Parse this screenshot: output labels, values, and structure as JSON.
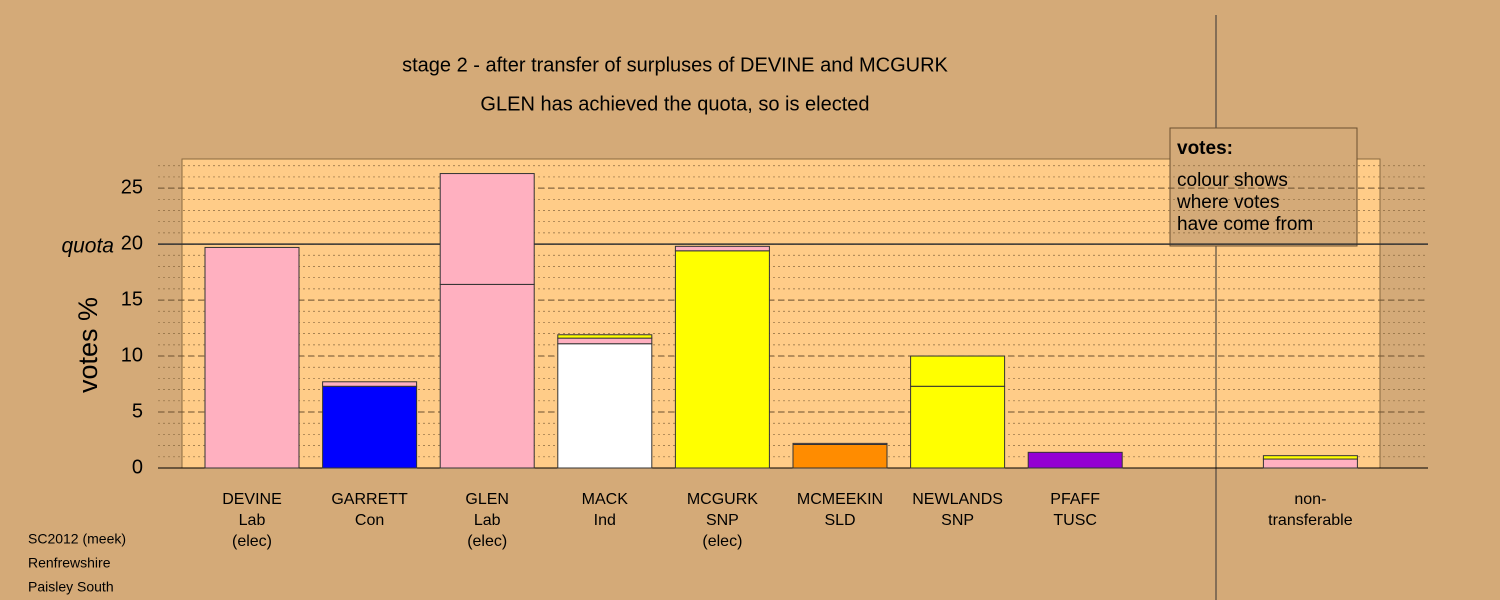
{
  "chart_data": {
    "type": "stacked-bar",
    "title": "stage 2 - after transfer of surpluses of DEVINE and MCGURK",
    "subtitle": "GLEN has achieved the quota, so is elected",
    "y_label": "votes %",
    "categories": [
      [
        "DEVINE",
        "Lab",
        "(elec)"
      ],
      [
        "GARRETT",
        "Con"
      ],
      [
        "GLEN",
        "Lab",
        "(elec)"
      ],
      [
        "MACK",
        "Ind"
      ],
      [
        "MCGURK",
        "SNP",
        "(elec)"
      ],
      [
        "MCMEEKIN",
        "SLD"
      ],
      [
        "NEWLANDS",
        "SNP"
      ],
      [
        "PFAFF",
        "TUSC"
      ],
      null,
      [
        "non-",
        "transferable"
      ]
    ],
    "stacks": [
      {
        "values": [
          19.7
        ],
        "colors": [
          "#ffb0c0"
        ]
      },
      {
        "values": [
          7.3,
          0.4
        ],
        "colors": [
          "#0000ff",
          "#ffb0c0"
        ]
      },
      {
        "values": [
          16.4,
          9.9
        ],
        "colors": [
          "#ffb0c0",
          "#ffb0c0"
        ]
      },
      {
        "values": [
          11.1,
          0.5,
          0.3
        ],
        "colors": [
          "#ffffff",
          "#ffb0c0",
          "#ffff00"
        ]
      },
      {
        "values": [
          19.4,
          0.4
        ],
        "colors": [
          "#ffff00",
          "#ffb0c0"
        ]
      },
      {
        "values": [
          2.1,
          0.1
        ],
        "colors": [
          "#ff8c00",
          "#ffb0c0"
        ]
      },
      {
        "values": [
          7.3,
          2.7
        ],
        "colors": [
          "#ffff00",
          "#ffff00"
        ]
      },
      {
        "values": [
          1.4
        ],
        "colors": [
          "#9400d3"
        ]
      },
      {
        "values": [],
        "colors": []
      },
      {
        "values": [
          0.8,
          0.3
        ],
        "colors": [
          "#ffb0c0",
          "#ffff00"
        ]
      }
    ],
    "quota": {
      "value": 20,
      "label": "quota"
    },
    "ylim": [
      0,
      27.6
    ],
    "yticks": [
      0,
      5,
      10,
      15,
      20,
      25
    ],
    "minor_grid_step": 1,
    "legend": {
      "title": "votes:",
      "lines": [
        "colour shows",
        "where votes",
        "have come from"
      ]
    },
    "footnote": [
      "SC2012 (meek)",
      "Renfrewshire",
      "Paisley South"
    ]
  }
}
